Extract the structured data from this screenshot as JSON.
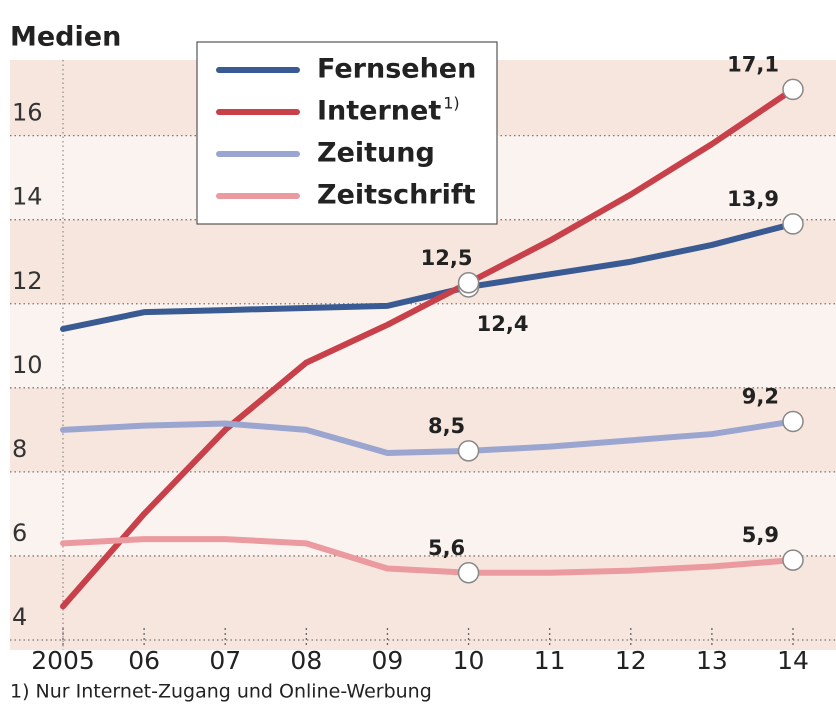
{
  "chart_data": {
    "type": "line",
    "title": "Medien",
    "footnote": "1) Nur Internet-Zugang und Online-Werbung",
    "categories": [
      "2005",
      "06",
      "07",
      "08",
      "09",
      "10",
      "11",
      "12",
      "13",
      "14"
    ],
    "ylim": [
      4,
      17.8
    ],
    "yticks": [
      4,
      6,
      8,
      10,
      12,
      14,
      16
    ],
    "grid": true,
    "legend": "top",
    "series": [
      {
        "name": "Fernsehen",
        "color": "#3a5a93",
        "values": [
          11.4,
          11.8,
          11.85,
          11.9,
          11.95,
          12.4,
          12.7,
          13.0,
          13.4,
          13.9
        ],
        "value_labels": [
          null,
          null,
          null,
          null,
          null,
          "12,4",
          null,
          null,
          null,
          "13,9"
        ]
      },
      {
        "name": "Internet",
        "name_note": "1)",
        "color": "#c8414a",
        "values": [
          4.8,
          7.0,
          9.0,
          10.6,
          11.5,
          12.5,
          13.5,
          14.6,
          15.8,
          17.1
        ],
        "value_labels": [
          null,
          null,
          null,
          null,
          null,
          "12,5",
          null,
          null,
          null,
          "17,1"
        ]
      },
      {
        "name": "Zeitung",
        "color": "#9aa6d0",
        "values": [
          9.0,
          9.1,
          9.15,
          9.0,
          8.45,
          8.5,
          8.6,
          8.75,
          8.9,
          9.2
        ],
        "value_labels": [
          null,
          null,
          null,
          null,
          null,
          "8,5",
          null,
          null,
          null,
          "9,2"
        ]
      },
      {
        "name": "Zeitschrift",
        "color": "#eb9aa0",
        "values": [
          6.3,
          6.4,
          6.4,
          6.3,
          5.7,
          5.6,
          5.6,
          5.65,
          5.75,
          5.9
        ],
        "value_labels": [
          null,
          null,
          null,
          null,
          null,
          "5,6",
          null,
          null,
          null,
          "5,9"
        ]
      }
    ]
  }
}
